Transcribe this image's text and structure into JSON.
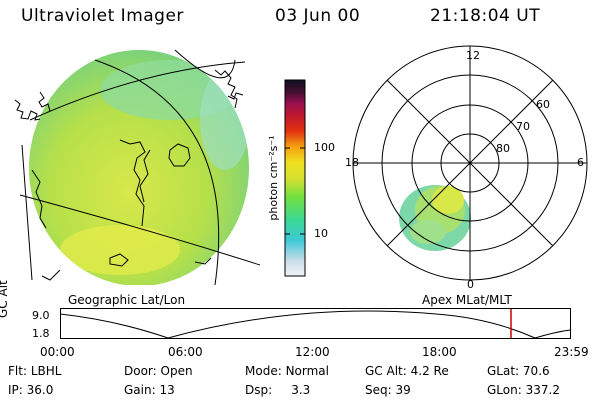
{
  "header": {
    "instrument": "Ultraviolet Imager",
    "date": "03 Jun 00",
    "time": "21:18:04 UT"
  },
  "geo_panel": {
    "caption": "Geographic Lat/Lon"
  },
  "polar_panel": {
    "caption": "Apex MLat/MLT",
    "mlt_labels": [
      "12",
      "6",
      "0",
      "18"
    ],
    "mlat_labels": [
      "60",
      "70",
      "80"
    ]
  },
  "colorbar": {
    "unit_label": "photon cm⁻²s⁻¹",
    "ticks": [
      "100",
      "10"
    ]
  },
  "timeline": {
    "axis_title": "GC Alt",
    "y_labels": [
      "9.0",
      "1.8"
    ],
    "time_labels": [
      "00:00",
      "06:00",
      "12:00",
      "18:00",
      "23:59"
    ],
    "marker_color": "#d00000"
  },
  "footer": {
    "row1": [
      {
        "key": "Flt:",
        "val": "LBHL"
      },
      {
        "key": "Door:",
        "val": "Open"
      },
      {
        "key": "Mode:",
        "val": "Normal"
      },
      {
        "key": "GC Alt:",
        "val": "4.2 Re"
      },
      {
        "key": "GLat:",
        "val": "70.6"
      }
    ],
    "row2": [
      {
        "key": "IP:",
        "val": "36.0"
      },
      {
        "key": "Gain:",
        "val": "13"
      },
      {
        "key": "Dsp:",
        "val": "3.3"
      },
      {
        "key": "Seq:",
        "val": "39"
      },
      {
        "key": "GLon:",
        "val": "337.2"
      }
    ]
  }
}
